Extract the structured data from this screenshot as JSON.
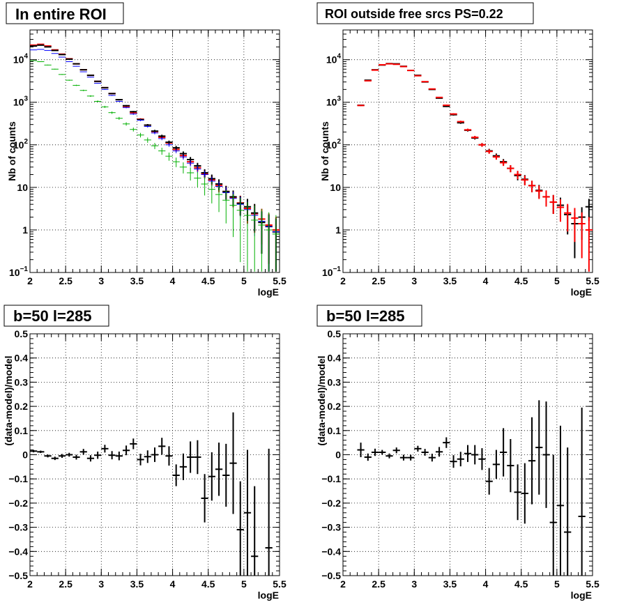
{
  "chart_data": [
    {
      "type": "scatter",
      "title": "In entire ROI",
      "xlabel": "logE",
      "ylabel": "Nb of counts",
      "xlim": [
        2,
        5.5
      ],
      "ylim": [
        0.1,
        50000
      ],
      "yscale": "log",
      "grid": true,
      "x_ticks": [
        "2",
        "2.5",
        "3",
        "3.5",
        "4",
        "4.5",
        "5",
        "5.5"
      ],
      "y_ticks": [
        {
          "v": 0.1,
          "base": "10",
          "exp": "−1"
        },
        {
          "v": 1,
          "base": "1",
          "exp": ""
        },
        {
          "v": 10,
          "base": "10",
          "exp": ""
        },
        {
          "v": 100,
          "base": "10",
          "exp": "2"
        },
        {
          "v": 1000,
          "base": "10",
          "exp": "3"
        },
        {
          "v": 10000,
          "base": "10",
          "exp": "4"
        }
      ],
      "x": [
        2.05,
        2.15,
        2.25,
        2.35,
        2.45,
        2.55,
        2.65,
        2.75,
        2.85,
        2.95,
        3.05,
        3.15,
        3.25,
        3.35,
        3.45,
        3.55,
        3.65,
        3.75,
        3.85,
        3.95,
        4.05,
        4.15,
        4.25,
        4.35,
        4.45,
        4.55,
        4.65,
        4.75,
        4.85,
        4.95,
        5.05,
        5.15,
        5.25,
        5.35,
        5.45
      ],
      "series": [
        {
          "color": "#ff0000",
          "width": 2,
          "err_scale": 1,
          "values": [
            22000,
            23000,
            21000,
            17000,
            13500,
            10500,
            8000,
            5800,
            4300,
            3100,
            2200,
            1600,
            1150,
            800,
            570,
            400,
            290,
            205,
            150,
            110,
            78,
            56,
            40,
            29,
            21,
            15,
            11,
            8.0,
            5.8,
            4.3,
            3.2,
            2.4,
            1.8,
            1.3,
            1.0
          ]
        },
        {
          "color": "#000000",
          "width": 2,
          "err_scale": 1,
          "values": [
            21000,
            22000,
            20000,
            16500,
            13200,
            10300,
            8000,
            5800,
            4300,
            3100,
            2200,
            1600,
            1150,
            830,
            600,
            390,
            290,
            210,
            160,
            115,
            85,
            62,
            45,
            32,
            22,
            16,
            12,
            8,
            6,
            4.2,
            3.5,
            2.5,
            1.5,
            1.2,
            0.9
          ]
        },
        {
          "color": "#0000ff",
          "width": 1,
          "err_scale": 1,
          "values": [
            17000,
            17500,
            16500,
            14000,
            11500,
            9000,
            7000,
            5200,
            3900,
            2800,
            2000,
            1450,
            1050,
            750,
            530,
            380,
            270,
            190,
            140,
            100,
            72,
            52,
            37,
            27,
            20,
            14,
            10.5,
            7.5,
            5.5,
            4.0,
            3.0,
            2.2,
            1.6,
            1.2,
            0.9
          ]
        },
        {
          "color": "#00b000",
          "width": 1,
          "err_scale": 1.6,
          "values": [
            9500,
            9000,
            7500,
            6000,
            4500,
            3300,
            2500,
            1900,
            1400,
            1050,
            780,
            570,
            420,
            310,
            230,
            170,
            130,
            95,
            72,
            54,
            40,
            30,
            22,
            16.5,
            12,
            9,
            6.8,
            5.0,
            3.8,
            2.9,
            2.2,
            1.7,
            1.3,
            1.0,
            0.8
          ]
        }
      ]
    },
    {
      "type": "scatter",
      "title": "ROI outside free srcs PS=0.22",
      "xlabel": "logE",
      "ylabel": "Nb of counts",
      "xlim": [
        2,
        5.5
      ],
      "ylim": [
        0.1,
        50000
      ],
      "yscale": "log",
      "grid": true,
      "x_ticks": [
        "2",
        "2.5",
        "3",
        "3.5",
        "4",
        "4.5",
        "5",
        "5.5"
      ],
      "y_ticks": [
        {
          "v": 0.1,
          "base": "10",
          "exp": "−1"
        },
        {
          "v": 1,
          "base": "1",
          "exp": ""
        },
        {
          "v": 10,
          "base": "10",
          "exp": ""
        },
        {
          "v": 100,
          "base": "10",
          "exp": "2"
        },
        {
          "v": 1000,
          "base": "10",
          "exp": "3"
        },
        {
          "v": 10000,
          "base": "10",
          "exp": "4"
        }
      ],
      "x": [
        2.25,
        2.35,
        2.45,
        2.55,
        2.65,
        2.75,
        2.85,
        2.95,
        3.05,
        3.15,
        3.25,
        3.35,
        3.45,
        3.55,
        3.65,
        3.75,
        3.85,
        3.95,
        4.05,
        4.15,
        4.25,
        4.35,
        4.45,
        4.55,
        4.65,
        4.75,
        4.85,
        4.95,
        5.05,
        5.15,
        5.25,
        5.35,
        5.45
      ],
      "series": [
        {
          "color": "#000000",
          "width": 2,
          "err_scale": 1,
          "values": [
            850,
            3300,
            5800,
            7500,
            8100,
            8000,
            7000,
            5600,
            4300,
            3000,
            2000,
            1250,
            800,
            510,
            330,
            220,
            145,
            100,
            72,
            55,
            40,
            28,
            19,
            15.5,
            11,
            8.5,
            6.0,
            4.5,
            3.8,
            2.3,
            1.4,
            2.0,
            3.5
          ]
        },
        {
          "color": "#ff0000",
          "width": 2,
          "err_scale": 1,
          "values": [
            840,
            3200,
            5700,
            7600,
            8000,
            7800,
            6900,
            5600,
            4200,
            3050,
            2050,
            1300,
            850,
            530,
            350,
            225,
            150,
            100,
            70,
            52,
            38,
            28,
            20,
            15,
            11,
            8.2,
            6.0,
            4.5,
            3.4,
            2.5,
            1.9,
            1.4,
            1.0
          ]
        }
      ]
    },
    {
      "type": "scatter",
      "title": "b=50 l=285",
      "xlabel": "logE",
      "ylabel": "(data-model)/model",
      "xlim": [
        2,
        5.5
      ],
      "ylim": [
        -0.5,
        0.5
      ],
      "grid": true,
      "x_ticks": [
        "2",
        "2.5",
        "3",
        "3.5",
        "4",
        "4.5",
        "5",
        "5.5"
      ],
      "y_ticks": [
        "−0.5",
        "−0.4",
        "−0.3",
        "−0.2",
        "−0.1",
        "0",
        "0.1",
        "0.2",
        "0.3",
        "0.4",
        "0.5"
      ],
      "x": [
        2.05,
        2.15,
        2.25,
        2.35,
        2.45,
        2.55,
        2.65,
        2.75,
        2.85,
        2.95,
        3.05,
        3.15,
        3.25,
        3.35,
        3.45,
        3.55,
        3.65,
        3.75,
        3.85,
        3.95,
        4.05,
        4.15,
        4.25,
        4.35,
        4.45,
        4.55,
        4.65,
        4.75,
        4.85,
        4.95,
        5.05,
        5.15,
        5.25,
        5.35
      ],
      "series": [
        {
          "color": "#000000",
          "width": 2,
          "values": [
            0.015,
            0.012,
            -0.005,
            -0.015,
            -0.005,
            0.0,
            -0.01,
            0.012,
            -0.015,
            -0.002,
            0.025,
            -0.002,
            -0.005,
            0.018,
            0.045,
            -0.02,
            -0.008,
            0.0,
            0.035,
            -0.005,
            -0.085,
            -0.05,
            -0.01,
            -0.01,
            -0.18,
            -0.09,
            -0.06,
            -0.085,
            -0.035,
            -0.31,
            -0.24,
            -0.42,
            null,
            -0.385
          ],
          "errors": [
            0.005,
            0.005,
            0.006,
            0.007,
            0.008,
            0.008,
            0.01,
            0.012,
            0.013,
            0.015,
            0.016,
            0.017,
            0.018,
            0.02,
            0.022,
            0.024,
            0.026,
            0.03,
            0.035,
            0.04,
            0.045,
            0.055,
            0.065,
            0.07,
            0.1,
            0.1,
            0.11,
            0.13,
            0.21,
            0.2,
            0.26,
            0.29,
            null,
            0.41
          ]
        }
      ]
    },
    {
      "type": "scatter",
      "title": "b=50 l=285",
      "xlabel": "logE",
      "ylabel": "(data-model)/model",
      "xlim": [
        2,
        5.5
      ],
      "ylim": [
        -0.5,
        0.5
      ],
      "grid": true,
      "x_ticks": [
        "2",
        "2.5",
        "3",
        "3.5",
        "4",
        "4.5",
        "5",
        "5.5"
      ],
      "y_ticks": [
        "−0.5",
        "−0.4",
        "−0.3",
        "−0.2",
        "−0.1",
        "0",
        "0.1",
        "0.2",
        "0.3",
        "0.4",
        "0.5"
      ],
      "x": [
        2.25,
        2.35,
        2.45,
        2.55,
        2.65,
        2.75,
        2.85,
        2.95,
        3.05,
        3.15,
        3.25,
        3.35,
        3.45,
        3.55,
        3.65,
        3.75,
        3.85,
        3.95,
        4.05,
        4.15,
        4.25,
        4.35,
        4.45,
        4.55,
        4.65,
        4.75,
        4.85,
        4.95,
        5.05,
        5.15,
        5.25,
        5.35
      ],
      "series": [
        {
          "color": "#000000",
          "width": 2,
          "values": [
            0.02,
            -0.01,
            0.01,
            0.01,
            -0.005,
            0.018,
            -0.012,
            -0.012,
            0.025,
            0.01,
            -0.012,
            0.012,
            0.05,
            -0.028,
            -0.018,
            0.005,
            0.0,
            -0.018,
            -0.11,
            -0.04,
            0.01,
            -0.045,
            -0.155,
            -0.16,
            -0.025,
            0.03,
            0.0,
            -0.28,
            -0.21,
            -0.32,
            null,
            -0.255
          ],
          "errors": [
            0.03,
            0.015,
            0.015,
            0.01,
            0.01,
            0.012,
            0.012,
            0.012,
            0.012,
            0.014,
            0.016,
            0.02,
            0.022,
            0.026,
            0.03,
            0.035,
            0.04,
            0.045,
            0.055,
            0.06,
            0.1,
            0.11,
            0.115,
            0.125,
            0.18,
            0.195,
            0.22,
            0.28,
            0.33,
            0.35,
            null,
            0.45
          ]
        }
      ]
    }
  ]
}
